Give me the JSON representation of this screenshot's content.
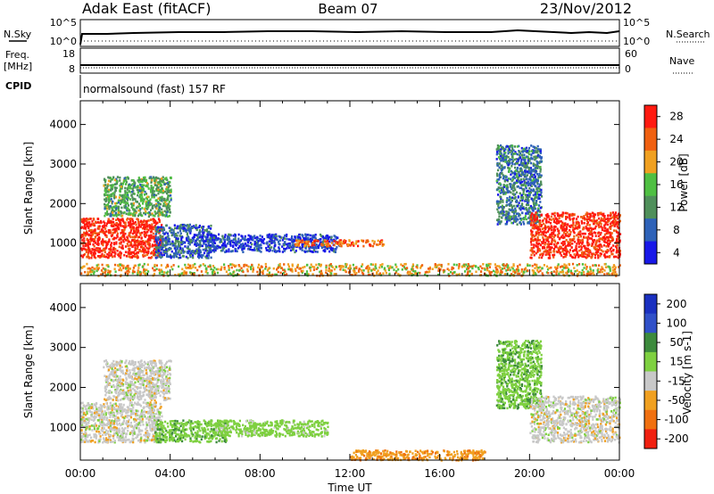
{
  "header": {
    "radar": "Adak East (fitACF)",
    "beam": "Beam 07",
    "date": "23/Nov/2012"
  },
  "status_panels": {
    "nsky_label": "N.Sky",
    "nsearch_label": "N.Search",
    "freq_label_line1": "Freq.",
    "freq_label_line2": "[MHz]",
    "nave_label": "Nave",
    "cpid_label": "CPID",
    "cpid_text": "normalsound (fast) 157 RF",
    "noise_left_ticks": [
      "10^5",
      "10^0"
    ],
    "noise_right_ticks": [
      "10^5",
      "10^0"
    ],
    "freq_ticks": [
      "18",
      "8"
    ],
    "nave_ticks": [
      "60",
      "0"
    ]
  },
  "x_axis": {
    "label": "Time UT",
    "tick_labels": [
      "00:00",
      "04:00",
      "08:00",
      "12:00",
      "16:00",
      "20:00",
      "00:00"
    ]
  },
  "chart_data": [
    {
      "type": "heatmap",
      "title": "",
      "quantity": "Power",
      "colorbar_label": "Power [dB]",
      "colorbar_ticks": [
        4,
        8,
        12,
        16,
        20,
        24,
        28
      ],
      "colorbar_colors": [
        "#1818e8",
        "#2e62b8",
        "#4f8f5a",
        "#4fbf42",
        "#f0a020",
        "#f06010",
        "#ff1a10"
      ],
      "ylabel": "Slant Range [km]",
      "yticks": [
        1000,
        2000,
        3000,
        4000
      ],
      "ylim": [
        180,
        4600
      ],
      "xlim": [
        0,
        24
      ],
      "xlabel": "",
      "regions": [
        {
          "name": "nightside-morning",
          "t": [
            0.0,
            3.6
          ],
          "range_km": [
            650,
            1650
          ],
          "dominant_dB": 28
        },
        {
          "name": "morning-upper-spread",
          "t": [
            1.0,
            4.0
          ],
          "range_km": [
            1700,
            2700
          ],
          "dominant_dB": 14
        },
        {
          "name": "dawn-band",
          "t": [
            3.3,
            5.8
          ],
          "range_km": [
            650,
            1500
          ],
          "dominant_dB": 8
        },
        {
          "name": "midday-band",
          "t": [
            5.5,
            11.5
          ],
          "range_km": [
            800,
            1250
          ],
          "dominant_dB": 6
        },
        {
          "name": "noon-patch",
          "t": [
            9.5,
            13.5
          ],
          "range_km": [
            950,
            1100
          ],
          "dominant_dB": 24
        },
        {
          "name": "evening-arc",
          "t": [
            18.5,
            20.5
          ],
          "range_km": [
            1500,
            3500
          ],
          "dominant_dB": 10
        },
        {
          "name": "nightside-evening",
          "t": [
            20.0,
            24.0
          ],
          "range_km": [
            650,
            1800
          ],
          "dominant_dB": 28
        },
        {
          "name": "near-range-clutter",
          "t": [
            0.0,
            24.0
          ],
          "range_km": [
            200,
            500
          ],
          "dominant_dB": 20
        }
      ]
    },
    {
      "type": "heatmap",
      "title": "",
      "quantity": "Velocity",
      "colorbar_label": "Velocity [m s-1]",
      "colorbar_ticks": [
        200,
        100,
        50,
        15,
        -15,
        -50,
        -100,
        -200
      ],
      "colorbar_colors": [
        "#1a30c0",
        "#3050c8",
        "#3c8a3c",
        "#7ed040",
        "#c8c8c8",
        "#f0a020",
        "#f07010",
        "#f02010"
      ],
      "ylabel": "Slant Range [km]",
      "yticks": [
        1000,
        2000,
        3000,
        4000
      ],
      "ylim": [
        180,
        4600
      ],
      "xlim": [
        0,
        24
      ],
      "xlabel": "Time UT",
      "regions": [
        {
          "name": "nightside-morning",
          "t": [
            0.0,
            3.6
          ],
          "range_km": [
            650,
            1650
          ],
          "dominant_ms": 0
        },
        {
          "name": "morning-upper-spread",
          "t": [
            1.0,
            4.0
          ],
          "range_km": [
            1700,
            2700
          ],
          "dominant_ms": 0
        },
        {
          "name": "dawn-band",
          "t": [
            3.3,
            6.5
          ],
          "range_km": [
            650,
            1200
          ],
          "dominant_ms": 40
        },
        {
          "name": "midday-band",
          "t": [
            6.0,
            11.0
          ],
          "range_km": [
            800,
            1200
          ],
          "dominant_ms": 30
        },
        {
          "name": "afternoon-ground",
          "t": [
            12.0,
            18.0
          ],
          "range_km": [
            200,
            450
          ],
          "dominant_ms": -40
        },
        {
          "name": "evening-arc",
          "t": [
            18.5,
            20.5
          ],
          "range_km": [
            1500,
            3200
          ],
          "dominant_ms": 40
        },
        {
          "name": "nightside-evening",
          "t": [
            20.0,
            24.0
          ],
          "range_km": [
            650,
            1800
          ],
          "dominant_ms": 0
        }
      ]
    }
  ]
}
